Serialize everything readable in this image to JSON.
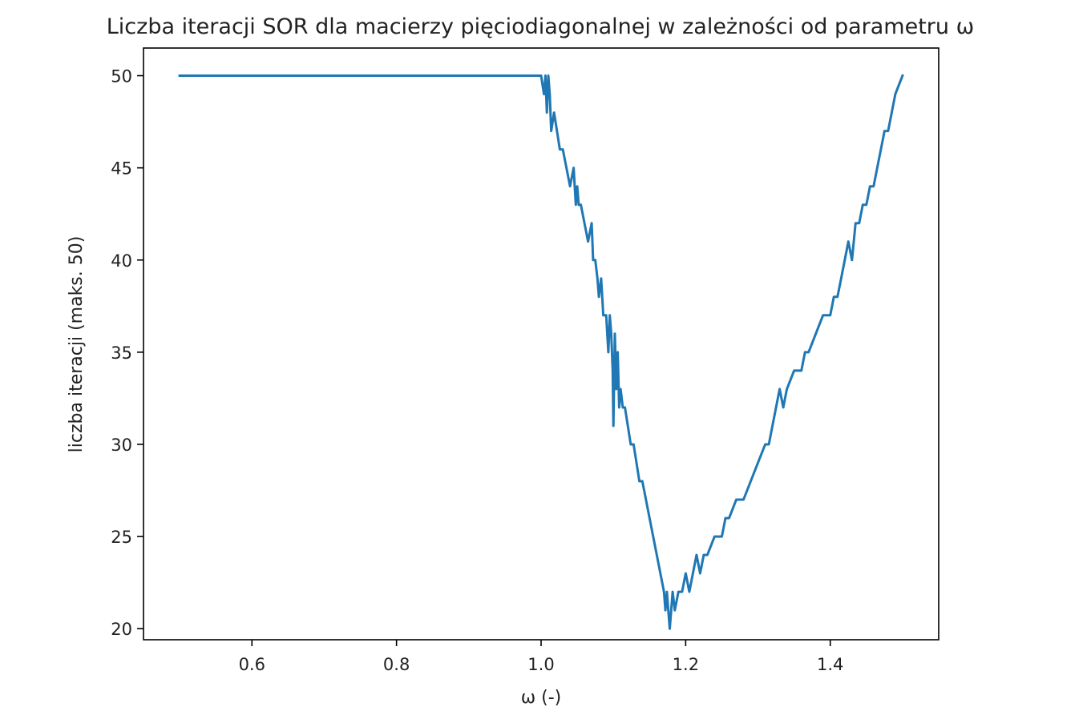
{
  "chart_data": {
    "type": "line",
    "title": "Liczba iteracji SOR dla macierzy pięciodiagonalnej w zależności od parametru ω",
    "xlabel": "ω (-)",
    "ylabel": "liczba iteracji (maks. 50)",
    "xlim": [
      0.45,
      1.55
    ],
    "ylim": [
      19.4,
      51.5
    ],
    "xticks": [
      0.6,
      0.8,
      1.0,
      1.2,
      1.4
    ],
    "xtick_labels": [
      "0.6",
      "0.8",
      "1.0",
      "1.2",
      "1.4"
    ],
    "yticks": [
      20,
      25,
      30,
      35,
      40,
      45,
      50
    ],
    "ytick_labels": [
      "20",
      "25",
      "30",
      "35",
      "40",
      "45",
      "50"
    ],
    "grid": false,
    "legend": "none",
    "series": [
      {
        "color": "#1f77b4",
        "x": [
          0.5,
          0.6,
          0.7,
          0.8,
          0.9,
          1.0,
          1.004,
          1.006,
          1.008,
          1.01,
          1.012,
          1.014,
          1.018,
          1.022,
          1.026,
          1.03,
          1.035,
          1.04,
          1.045,
          1.048,
          1.05,
          1.052,
          1.055,
          1.06,
          1.065,
          1.07,
          1.072,
          1.075,
          1.078,
          1.08,
          1.083,
          1.086,
          1.09,
          1.093,
          1.095,
          1.097,
          1.099,
          1.1,
          1.102,
          1.104,
          1.106,
          1.108,
          1.11,
          1.113,
          1.116,
          1.12,
          1.124,
          1.128,
          1.132,
          1.136,
          1.14,
          1.145,
          1.15,
          1.155,
          1.16,
          1.165,
          1.17,
          1.172,
          1.174,
          1.176,
          1.178,
          1.18,
          1.182,
          1.185,
          1.19,
          1.195,
          1.2,
          1.205,
          1.21,
          1.215,
          1.22,
          1.225,
          1.23,
          1.24,
          1.25,
          1.255,
          1.26,
          1.27,
          1.28,
          1.29,
          1.3,
          1.31,
          1.315,
          1.32,
          1.325,
          1.33,
          1.335,
          1.34,
          1.35,
          1.36,
          1.365,
          1.37,
          1.38,
          1.39,
          1.4,
          1.405,
          1.41,
          1.415,
          1.42,
          1.425,
          1.43,
          1.435,
          1.44,
          1.445,
          1.45,
          1.455,
          1.46,
          1.465,
          1.47,
          1.475,
          1.48,
          1.485,
          1.49,
          1.5
        ],
        "values": [
          50,
          50,
          50,
          50,
          50,
          50,
          49,
          50,
          48,
          50,
          49,
          47,
          48,
          47,
          46,
          46,
          45,
          44,
          45,
          43,
          44,
          43,
          43,
          42,
          41,
          42,
          40,
          40,
          39,
          38,
          39,
          37,
          37,
          35,
          37,
          36,
          34,
          31,
          36,
          33,
          35,
          32,
          33,
          32,
          32,
          31,
          30,
          30,
          29,
          28,
          28,
          27,
          26,
          25,
          24,
          23,
          22,
          21,
          22,
          21,
          20,
          21,
          22,
          21,
          22,
          22,
          23,
          22,
          23,
          24,
          23,
          24,
          24,
          25,
          25,
          26,
          26,
          27,
          27,
          28,
          29,
          30,
          30,
          31,
          32,
          33,
          32,
          33,
          34,
          34,
          35,
          35,
          36,
          37,
          37,
          38,
          38,
          39,
          40,
          41,
          40,
          42,
          42,
          43,
          43,
          44,
          44,
          45,
          46,
          47,
          47,
          48,
          49,
          50
        ]
      }
    ]
  }
}
